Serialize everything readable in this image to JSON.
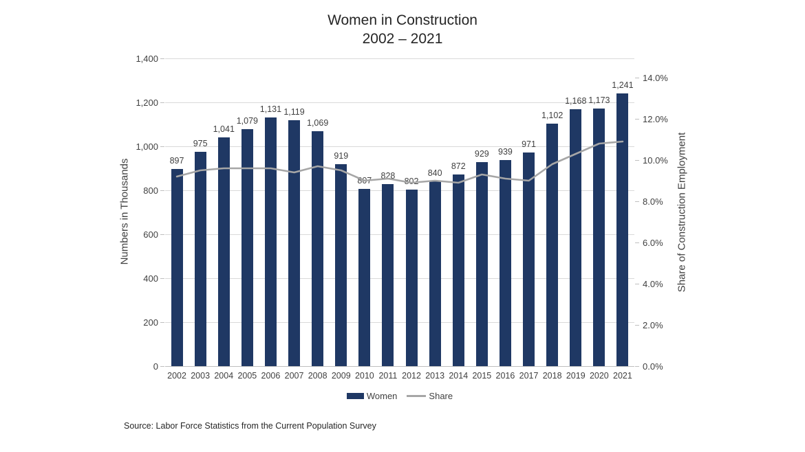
{
  "title": {
    "line1": "Women in Construction",
    "line2": "2002 – 2021"
  },
  "left_axis": {
    "label": "Numbers in Thousands",
    "min": 0,
    "max": 1400,
    "tick_step": 200,
    "ticks": [
      "0",
      "200",
      "400",
      "600",
      "800",
      "1,000",
      "1,200",
      "1,400"
    ]
  },
  "right_axis": {
    "label": "Share of Construction Employment",
    "min": 0,
    "max": 14,
    "tick_step": 2,
    "ticks": [
      "0.0%",
      "2.0%",
      "4.0%",
      "6.0%",
      "8.0%",
      "10.0%",
      "12.0%",
      "14.0%"
    ]
  },
  "source": "Source: Labor Force Statistics from the Current Population Survey",
  "colors": {
    "bar": "#1f3864",
    "line": "#a6a6a6",
    "grid": "#d9d9d9",
    "axis": "#bfbfbf",
    "text": "#404040"
  },
  "chart_data": {
    "type": "combo",
    "title": "Women in Construction 2002 – 2021",
    "categories": [
      "2002",
      "2003",
      "2004",
      "2005",
      "2006",
      "2007",
      "2008",
      "2009",
      "2010",
      "2011",
      "2012",
      "2013",
      "2014",
      "2015",
      "2016",
      "2017",
      "2018",
      "2019",
      "2020",
      "2021"
    ],
    "series": [
      {
        "name": "Women",
        "type": "bar",
        "axis": "left",
        "color": "#1f3864",
        "values": [
          897,
          975,
          1041,
          1079,
          1131,
          1119,
          1069,
          919,
          807,
          828,
          802,
          840,
          872,
          929,
          939,
          971,
          1102,
          1168,
          1173,
          1241
        ],
        "data_labels": [
          "897",
          "975",
          "1,041",
          "1,079",
          "1,131",
          "1,119",
          "1,069",
          "919",
          "807",
          "828",
          "802",
          "840",
          "872",
          "929",
          "939",
          "971",
          "1,102",
          "1,168",
          "1,173",
          "1,241"
        ]
      },
      {
        "name": "Share",
        "type": "line",
        "axis": "right",
        "color": "#a6a6a6",
        "values": [
          9.2,
          9.5,
          9.6,
          9.6,
          9.6,
          9.4,
          9.7,
          9.5,
          9.0,
          9.1,
          8.9,
          9.0,
          8.9,
          9.3,
          9.1,
          9.0,
          9.8,
          10.3,
          10.8,
          10.9
        ]
      }
    ],
    "xlabel": "",
    "ylabel_left": "Numbers in Thousands",
    "ylabel_right": "Share of Construction Employment",
    "left_ylim": [
      0,
      1400
    ],
    "right_ylim": [
      0,
      14
    ],
    "grid": true,
    "legend_position": "bottom"
  }
}
